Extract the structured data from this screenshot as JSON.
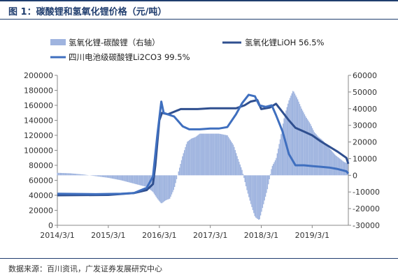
{
  "figure": {
    "title": "图 1：碳酸锂和氢氧化锂价格（元/吨）",
    "source": "数据来源：百川资讯，广发证券发展研究中心"
  },
  "chart_data": {
    "type": "line",
    "x_ticks": [
      "2014/3/1",
      "2015/3/1",
      "2016/3/1",
      "2017/3/1",
      "2018/3/1",
      "2019/3/1"
    ],
    "x_range": [
      "2014/3/1",
      "2019/11/15"
    ],
    "y_left": {
      "ticks": [
        0,
        20000,
        40000,
        60000,
        80000,
        100000,
        120000,
        140000,
        160000,
        180000,
        200000
      ],
      "range": [
        0,
        200000
      ]
    },
    "y_right": {
      "ticks": [
        -30000,
        -20000,
        -10000,
        0,
        10000,
        20000,
        30000,
        40000,
        50000,
        60000
      ],
      "range": [
        -30000,
        60000
      ]
    },
    "legend": [
      {
        "name": "氢氧化锂-碳酸锂（右轴）",
        "kind": "bar"
      },
      {
        "name": "氢氧化锂LiOH 56.5%",
        "kind": "line"
      },
      {
        "name": "四川电池级碳酸锂Li2CO3 99.5%",
        "kind": "line"
      }
    ],
    "colors": {
      "bar": "#9fb4df",
      "lioh": "#2f4f8f",
      "li2co3": "#3f6fbf",
      "title": "#1f3d6e"
    },
    "series": [
      {
        "name": "氢氧化锂-碳酸锂（右轴）",
        "axis": "right",
        "type": "bar",
        "points": [
          [
            "2014/3/1",
            1500
          ],
          [
            "2014/6/1",
            1200
          ],
          [
            "2014/9/1",
            500
          ],
          [
            "2014/12/1",
            -500
          ],
          [
            "2015/3/1",
            -1500
          ],
          [
            "2015/6/1",
            -3000
          ],
          [
            "2015/9/1",
            -5000
          ],
          [
            "2015/12/1",
            -7000
          ],
          [
            "2016/1/15",
            -10000
          ],
          [
            "2016/2/15",
            -14000
          ],
          [
            "2016/3/15",
            -17000
          ],
          [
            "2016/4/15",
            -15000
          ],
          [
            "2016/5/15",
            -14000
          ],
          [
            "2016/6/15",
            -8000
          ],
          [
            "2016/7/15",
            2000
          ],
          [
            "2016/8/15",
            12000
          ],
          [
            "2016/9/15",
            20000
          ],
          [
            "2016/10/15",
            22000
          ],
          [
            "2016/11/15",
            23000
          ],
          [
            "2016/12/15",
            25000
          ],
          [
            "2017/1/15",
            25000
          ],
          [
            "2017/3/1",
            25000
          ],
          [
            "2017/5/1",
            25000
          ],
          [
            "2017/7/1",
            24000
          ],
          [
            "2017/8/15",
            18000
          ],
          [
            "2017/9/15",
            10000
          ],
          [
            "2017/10/15",
            3000
          ],
          [
            "2017/11/15",
            -8000
          ],
          [
            "2017/12/15",
            -17000
          ],
          [
            "2018/1/15",
            -25000
          ],
          [
            "2018/2/15",
            -27000
          ],
          [
            "2018/3/15",
            -18000
          ],
          [
            "2018/4/15",
            -8000
          ],
          [
            "2018/5/15",
            5000
          ],
          [
            "2018/6/15",
            10000
          ],
          [
            "2018/7/15",
            22000
          ],
          [
            "2018/8/15",
            36000
          ],
          [
            "2018/9/15",
            45000
          ],
          [
            "2018/10/15",
            51000
          ],
          [
            "2018/11/15",
            46000
          ],
          [
            "2018/12/15",
            40000
          ],
          [
            "2019/1/15",
            35000
          ],
          [
            "2019/2/15",
            31000
          ],
          [
            "2019/3/15",
            26000
          ],
          [
            "2019/4/15",
            23000
          ],
          [
            "2019/5/15",
            21000
          ],
          [
            "2019/6/15",
            18000
          ],
          [
            "2019/7/15",
            15000
          ],
          [
            "2019/8/15",
            12000
          ],
          [
            "2019/9/15",
            10000
          ],
          [
            "2019/10/15",
            8000
          ],
          [
            "2019/11/15",
            7000
          ]
        ]
      },
      {
        "name": "氢氧化锂LiOH 56.5%",
        "axis": "left",
        "type": "line",
        "points": [
          [
            "2014/3/1",
            40000
          ],
          [
            "2015/3/1",
            40500
          ],
          [
            "2015/9/1",
            43000
          ],
          [
            "2015/12/1",
            47000
          ],
          [
            "2016/1/15",
            55000
          ],
          [
            "2016/2/1",
            80000
          ],
          [
            "2016/3/1",
            140000
          ],
          [
            "2016/3/20",
            150000
          ],
          [
            "2016/5/1",
            148000
          ],
          [
            "2016/8/1",
            155000
          ],
          [
            "2016/12/1",
            155000
          ],
          [
            "2017/3/1",
            156000
          ],
          [
            "2017/7/1",
            156000
          ],
          [
            "2017/9/1",
            156000
          ],
          [
            "2017/11/1",
            160000
          ],
          [
            "2017/12/15",
            165000
          ],
          [
            "2018/2/1",
            167000
          ],
          [
            "2018/3/1",
            155000
          ],
          [
            "2018/5/1",
            157000
          ],
          [
            "2018/6/15",
            162000
          ],
          [
            "2018/7/15",
            155000
          ],
          [
            "2018/9/15",
            140000
          ],
          [
            "2018/11/1",
            130000
          ],
          [
            "2019/1/1",
            125000
          ],
          [
            "2019/3/1",
            120000
          ],
          [
            "2019/5/1",
            112000
          ],
          [
            "2019/7/1",
            105000
          ],
          [
            "2019/9/1",
            98000
          ],
          [
            "2019/11/1",
            90000
          ],
          [
            "2019/11/15",
            82000
          ]
        ]
      },
      {
        "name": "四川电池级碳酸锂Li2CO3 99.5%",
        "axis": "left",
        "type": "line",
        "points": [
          [
            "2014/3/1",
            42000
          ],
          [
            "2014/12/1",
            41500
          ],
          [
            "2015/6/1",
            42000
          ],
          [
            "2015/9/1",
            43000
          ],
          [
            "2015/12/1",
            50000
          ],
          [
            "2016/1/15",
            65000
          ],
          [
            "2016/2/15",
            120000
          ],
          [
            "2016/3/15",
            165000
          ],
          [
            "2016/4/1",
            150000
          ],
          [
            "2016/5/1",
            148000
          ],
          [
            "2016/6/15",
            145000
          ],
          [
            "2016/8/15",
            132000
          ],
          [
            "2016/10/1",
            128000
          ],
          [
            "2016/12/15",
            128000
          ],
          [
            "2017/3/1",
            129000
          ],
          [
            "2017/5/1",
            129000
          ],
          [
            "2017/7/1",
            131000
          ],
          [
            "2017/9/1",
            148000
          ],
          [
            "2017/10/15",
            163000
          ],
          [
            "2017/12/1",
            174000
          ],
          [
            "2018/1/15",
            172000
          ],
          [
            "2018/2/15",
            160000
          ],
          [
            "2018/4/1",
            158000
          ],
          [
            "2018/5/15",
            160000
          ],
          [
            "2018/6/15",
            147000
          ],
          [
            "2018/8/1",
            125000
          ],
          [
            "2018/9/15",
            95000
          ],
          [
            "2018/11/1",
            80000
          ],
          [
            "2019/1/1",
            80000
          ],
          [
            "2019/3/1",
            79000
          ],
          [
            "2019/5/1",
            78000
          ],
          [
            "2019/7/1",
            77000
          ],
          [
            "2019/9/1",
            75000
          ],
          [
            "2019/11/1",
            72000
          ],
          [
            "2019/11/15",
            69000
          ]
        ]
      }
    ]
  }
}
